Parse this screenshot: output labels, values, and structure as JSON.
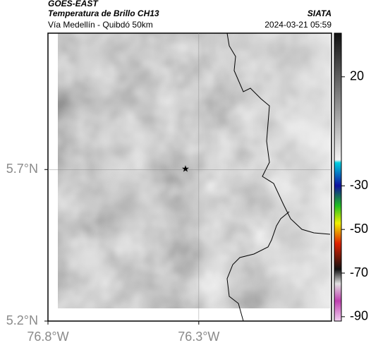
{
  "header": {
    "title": "GOES-EAST",
    "subtitle": "Temperatura de Brillo CH13",
    "source": "SIATA",
    "route": "Vía Medellín - Quibdó 50km",
    "datetime": "2024-03-21 05:59"
  },
  "map": {
    "xlim": [
      -76.8,
      -75.86
    ],
    "ylim": [
      5.2,
      6.15
    ],
    "xticks": [
      {
        "value": -76.8,
        "label": "76.8°W"
      },
      {
        "value": -76.3,
        "label": "76.3°W"
      }
    ],
    "yticks": [
      {
        "value": 5.2,
        "label": "5.2°N"
      },
      {
        "value": 5.7,
        "label": "5.7°N"
      }
    ],
    "marker": {
      "lon": -76.344,
      "lat": 5.7
    }
  },
  "colorbar": {
    "lim": [
      40,
      -92
    ],
    "ticks": [
      20,
      -30,
      -50,
      -70,
      -90
    ]
  }
}
